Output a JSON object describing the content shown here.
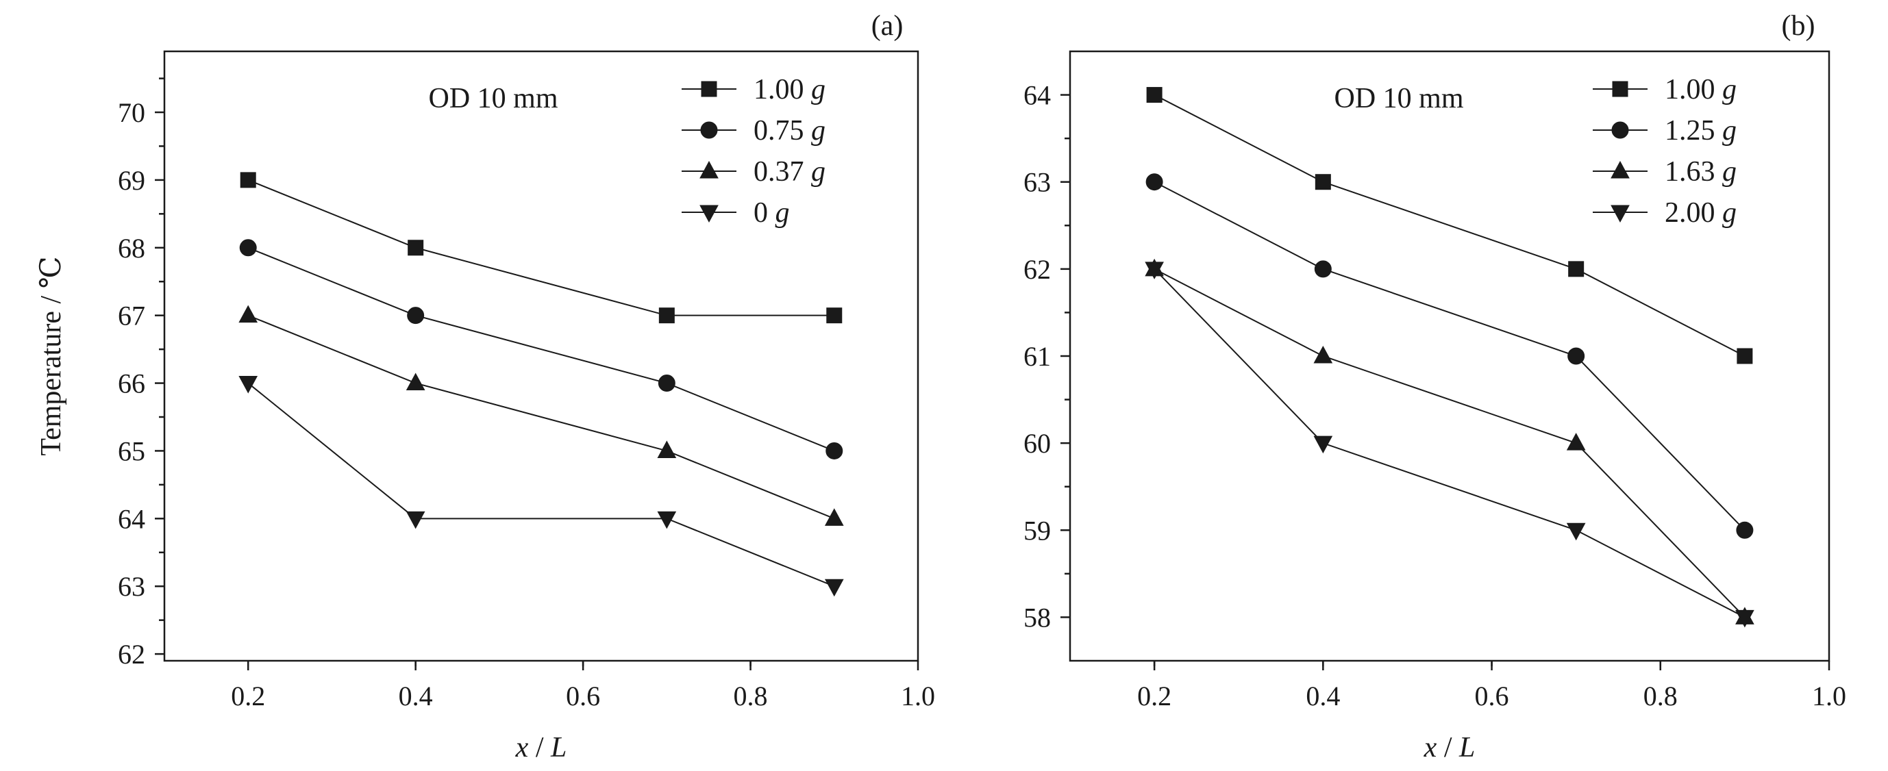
{
  "chart_data": [
    {
      "type": "line",
      "panel_label": "(a)",
      "annotation": "OD 10 mm",
      "xlabel": "x / L",
      "ylabel": "Temperature / ℃",
      "xlim": [
        0.1,
        1.0
      ],
      "ylim": [
        61.9,
        70.9
      ],
      "xticks": [
        "0.2",
        "0.4",
        "0.6",
        "0.8",
        "1.0"
      ],
      "yticks": [
        "62",
        "63",
        "64",
        "65",
        "66",
        "67",
        "68",
        "69",
        "70"
      ],
      "grid": false,
      "legend_position": "top-right",
      "x": [
        0.2,
        0.4,
        0.7,
        0.9
      ],
      "series": [
        {
          "name": "1.00 g",
          "name_value": "1.00",
          "name_unit": "g",
          "marker": "square",
          "values": [
            69,
            68,
            67,
            67
          ]
        },
        {
          "name": "0.75 g",
          "name_value": "0.75",
          "name_unit": "g",
          "marker": "circle",
          "values": [
            68,
            67,
            66,
            65
          ]
        },
        {
          "name": "0.37 g",
          "name_value": "0.37",
          "name_unit": "g",
          "marker": "triangle-up",
          "values": [
            67,
            66,
            65,
            64
          ]
        },
        {
          "name": "0 g",
          "name_value": "0",
          "name_unit": "g",
          "marker": "triangle-down",
          "values": [
            66,
            64,
            64,
            63
          ]
        }
      ]
    },
    {
      "type": "line",
      "panel_label": "(b)",
      "annotation": "OD 10 mm",
      "xlabel": "x / L",
      "ylabel": "",
      "xlim": [
        0.1,
        1.0
      ],
      "ylim": [
        57.5,
        64.5
      ],
      "xticks": [
        "0.2",
        "0.4",
        "0.6",
        "0.8",
        "1.0"
      ],
      "yticks": [
        "58",
        "59",
        "60",
        "61",
        "62",
        "63",
        "64"
      ],
      "grid": false,
      "legend_position": "top-right",
      "x": [
        0.2,
        0.4,
        0.7,
        0.9
      ],
      "series": [
        {
          "name": "1.00 g",
          "name_value": "1.00",
          "name_unit": "g",
          "marker": "square",
          "values": [
            64,
            63,
            62,
            61
          ]
        },
        {
          "name": "1.25 g",
          "name_value": "1.25",
          "name_unit": "g",
          "marker": "circle",
          "values": [
            63,
            62,
            61,
            59
          ]
        },
        {
          "name": "1.63 g",
          "name_value": "1.63",
          "name_unit": "g",
          "marker": "triangle-up",
          "values": [
            62,
            61,
            60,
            58
          ]
        },
        {
          "name": "2.00 g",
          "name_value": "2.00",
          "name_unit": "g",
          "marker": "triangle-down",
          "values": [
            62,
            60,
            59,
            58
          ]
        }
      ]
    }
  ],
  "labels": {
    "xlabel_var": "x",
    "xlabel_sep": " / ",
    "xlabel_den": "L"
  }
}
